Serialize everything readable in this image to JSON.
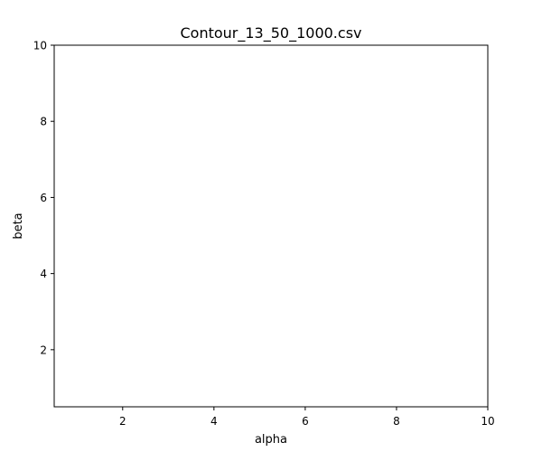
{
  "chart_data": {
    "type": "scatter",
    "title": "Contour_13_50_1000.csv",
    "xlabel": "alpha",
    "ylabel": "beta",
    "xlim": [
      0.5,
      10
    ],
    "ylim": [
      0.5,
      10
    ],
    "xticks": [
      2,
      4,
      6,
      8,
      10
    ],
    "yticks": [
      2,
      4,
      6,
      8,
      10
    ],
    "grid": false,
    "series": []
  }
}
